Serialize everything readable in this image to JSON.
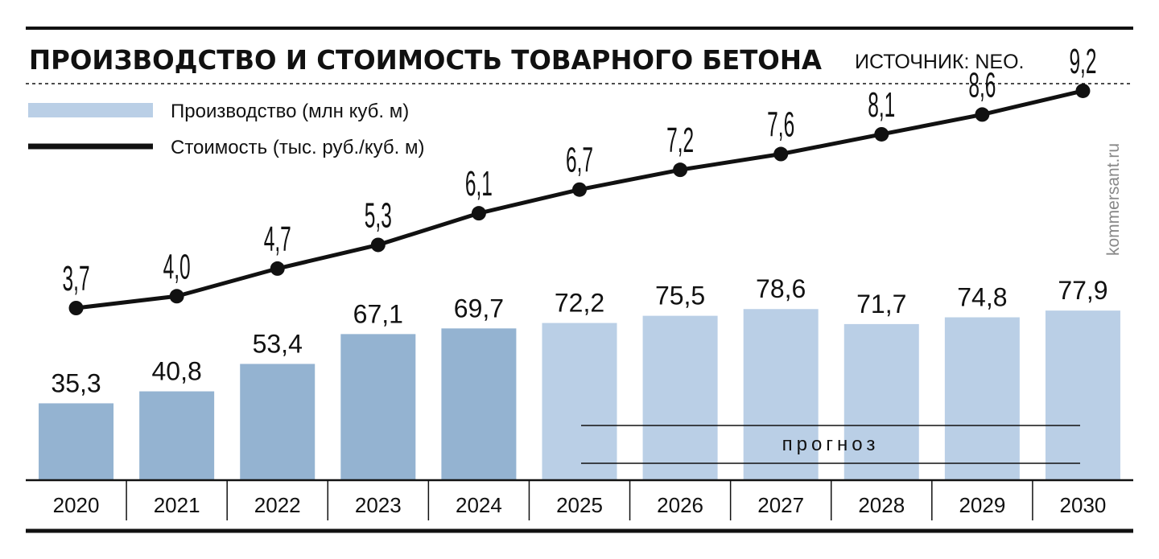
{
  "header": {
    "title": "ПРОИЗВОДСТВО И СТОИМОСТЬ ТОВАРНОГО БЕТОНА",
    "source": "ИСТОЧНИК: NEO."
  },
  "legend": {
    "production_label": "Производство (млн куб. м)",
    "cost_label": "Стоимость (тыс. руб./куб. м)"
  },
  "forecast_label": "прогноз",
  "credit": "kommersant.ru",
  "colors": {
    "actual_bar": "#94b3d1",
    "forecast_bar": "#bacfe6",
    "line": "#111111"
  },
  "chart_data": {
    "type": "bar",
    "title": "ПРОИЗВОДСТВО И СТОИМОСТЬ ТОВАРНОГО БЕТОНА",
    "categories": [
      "2020",
      "2021",
      "2022",
      "2023",
      "2024",
      "2025",
      "2026",
      "2027",
      "2028",
      "2029",
      "2030"
    ],
    "series": [
      {
        "name": "Производство (млн куб. м)",
        "type": "bar",
        "values": [
          35.3,
          40.8,
          53.4,
          67.1,
          69.7,
          72.2,
          75.5,
          78.6,
          71.7,
          74.8,
          77.9
        ],
        "labels": [
          "35,3",
          "40,8",
          "53,4",
          "67,1",
          "69,7",
          "72,2",
          "75,5",
          "78,6",
          "71,7",
          "74,8",
          "77,9"
        ]
      },
      {
        "name": "Стоимость (тыс. руб./куб. м)",
        "type": "line",
        "values": [
          3.7,
          4.0,
          4.7,
          5.3,
          6.1,
          6.7,
          7.2,
          7.6,
          8.1,
          8.6,
          9.2
        ],
        "labels": [
          "3,7",
          "4,0",
          "4,7",
          "5,3",
          "6,1",
          "6,7",
          "7,2",
          "7,6",
          "8,1",
          "8,6",
          "9,2"
        ]
      }
    ],
    "forecast_from": "2025",
    "forecast_to": "2030",
    "grid": false
  }
}
